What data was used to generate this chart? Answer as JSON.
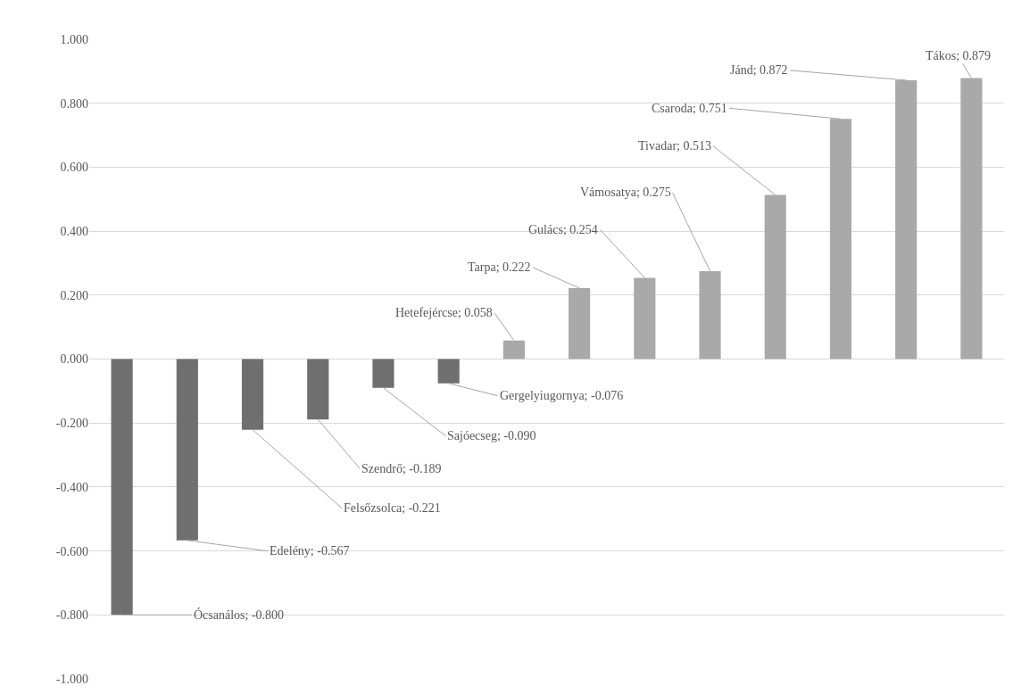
{
  "chart_data": {
    "type": "bar",
    "categories": [
      null,
      null,
      null,
      null,
      null,
      null,
      null,
      null,
      null,
      null,
      null,
      null,
      null,
      null
    ],
    "values": [
      -0.8,
      -0.567,
      -0.221,
      -0.189,
      -0.09,
      -0.076,
      0.058,
      0.222,
      0.254,
      0.275,
      0.513,
      0.751,
      0.872,
      0.879
    ],
    "colors": [
      "#6f6f6f",
      "#6f6f6f",
      "#6f6f6f",
      "#6f6f6f",
      "#6f6f6f",
      "#6f6f6f",
      "#a9a9a9",
      "#a9a9a9",
      "#a9a9a9",
      "#a9a9a9",
      "#a9a9a9",
      "#a9a9a9",
      "#a9a9a9",
      "#a9a9a9"
    ],
    "value_labels": [
      "Ócsanálos; -0.800",
      "Edelény; -0.567",
      "Felsőzsolca; -0.221",
      "Szendrő; -0.189",
      "Sajóecseg; -0.090",
      "Gergelyiugornya; -0.076",
      "Hetefejércse; 0.058",
      "Tarpa; 0.222",
      "Gulács; 0.254",
      "Vámosatya; 0.275",
      "Tivadar; 0.513",
      "Csaroda; 0.751",
      "Jánd; 0.872",
      "Tákos; 0.879"
    ],
    "ylim": [
      -1,
      1
    ],
    "yticks": [
      {
        "value": -1,
        "label": "-1.000"
      },
      {
        "value": -0.8,
        "label": "-0.800"
      },
      {
        "value": -0.6,
        "label": "-0.600"
      },
      {
        "value": -0.4,
        "label": "-0.400"
      },
      {
        "value": -0.2,
        "label": "-0.200"
      },
      {
        "value": 0,
        "label": "0.000"
      },
      {
        "value": 0.2,
        "label": "0.200"
      },
      {
        "value": 0.4,
        "label": "0.400"
      },
      {
        "value": 0.6,
        "label": "0.600"
      },
      {
        "value": 0.8,
        "label": "0.800"
      },
      {
        "value": 1,
        "label": "1.000"
      }
    ],
    "grid": "y",
    "tick_labels": "y",
    "legend": false
  }
}
